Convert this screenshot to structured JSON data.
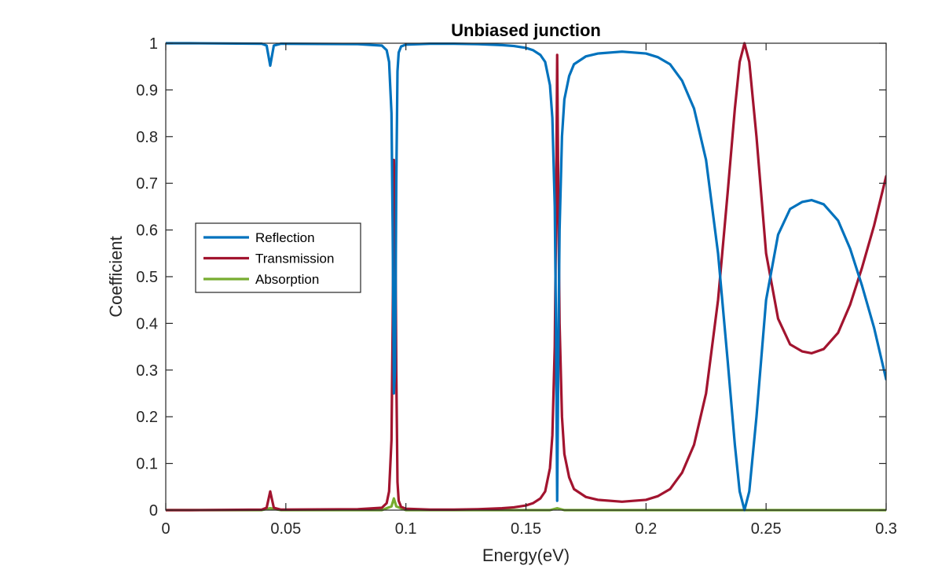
{
  "chart_data": {
    "type": "line",
    "title": "Unbiased junction",
    "xlabel": "Energy(eV)",
    "ylabel": "Coefficient",
    "xlim": [
      0,
      0.3
    ],
    "ylim": [
      0,
      1
    ],
    "xticks": [
      "0",
      "0.05",
      "0.1",
      "0.15",
      "0.2",
      "0.25",
      "0.3"
    ],
    "yticks": [
      "0",
      "0.1",
      "0.2",
      "0.3",
      "0.4",
      "0.5",
      "0.6",
      "0.7",
      "0.8",
      "0.9",
      "1"
    ],
    "grid": false,
    "legend": "center-left",
    "series": [
      {
        "name": "Reflection",
        "color": "#0072BD",
        "x": [
          0,
          0.01,
          0.04,
          0.042,
          0.0435,
          0.045,
          0.048,
          0.08,
          0.09,
          0.092,
          0.093,
          0.094,
          0.0945,
          0.095,
          0.0955,
          0.096,
          0.0965,
          0.097,
          0.098,
          0.1,
          0.11,
          0.12,
          0.13,
          0.14,
          0.145,
          0.15,
          0.153,
          0.156,
          0.158,
          0.16,
          0.161,
          0.162,
          0.1625,
          0.163,
          0.1635,
          0.164,
          0.165,
          0.166,
          0.168,
          0.17,
          0.175,
          0.18,
          0.19,
          0.2,
          0.205,
          0.21,
          0.215,
          0.22,
          0.225,
          0.23,
          0.234,
          0.237,
          0.239,
          0.241,
          0.243,
          0.246,
          0.25,
          0.255,
          0.26,
          0.265,
          0.269,
          0.274,
          0.28,
          0.285,
          0.29,
          0.295,
          0.3
        ],
        "y": [
          1,
          1,
          0.999,
          0.995,
          0.952,
          0.995,
          0.999,
          0.998,
          0.995,
          0.985,
          0.96,
          0.85,
          0.6,
          0.25,
          0.3,
          0.7,
          0.94,
          0.98,
          0.993,
          0.997,
          0.999,
          0.999,
          0.998,
          0.996,
          0.994,
          0.99,
          0.985,
          0.975,
          0.96,
          0.91,
          0.84,
          0.65,
          0.4,
          0.02,
          0.35,
          0.6,
          0.8,
          0.88,
          0.93,
          0.955,
          0.972,
          0.978,
          0.982,
          0.978,
          0.97,
          0.955,
          0.92,
          0.86,
          0.75,
          0.55,
          0.32,
          0.14,
          0.04,
          0.0,
          0.04,
          0.2,
          0.45,
          0.59,
          0.645,
          0.66,
          0.664,
          0.655,
          0.62,
          0.56,
          0.48,
          0.39,
          0.28
        ]
      },
      {
        "name": "Transmission",
        "color": "#A2142F",
        "x": [
          0,
          0.01,
          0.04,
          0.042,
          0.0435,
          0.045,
          0.048,
          0.08,
          0.09,
          0.092,
          0.093,
          0.094,
          0.0945,
          0.095,
          0.0955,
          0.096,
          0.0965,
          0.097,
          0.098,
          0.1,
          0.11,
          0.12,
          0.13,
          0.14,
          0.145,
          0.15,
          0.153,
          0.156,
          0.158,
          0.16,
          0.161,
          0.162,
          0.1625,
          0.163,
          0.1635,
          0.164,
          0.165,
          0.166,
          0.168,
          0.17,
          0.175,
          0.18,
          0.19,
          0.2,
          0.205,
          0.21,
          0.215,
          0.22,
          0.225,
          0.23,
          0.234,
          0.237,
          0.239,
          0.241,
          0.243,
          0.246,
          0.25,
          0.255,
          0.26,
          0.265,
          0.269,
          0.274,
          0.28,
          0.285,
          0.29,
          0.295,
          0.3
        ],
        "y": [
          0,
          0,
          0.001,
          0.005,
          0.04,
          0.005,
          0.001,
          0.002,
          0.005,
          0.015,
          0.04,
          0.15,
          0.4,
          0.75,
          0.7,
          0.3,
          0.06,
          0.02,
          0.007,
          0.003,
          0.001,
          0.001,
          0.002,
          0.004,
          0.006,
          0.01,
          0.015,
          0.025,
          0.04,
          0.09,
          0.16,
          0.35,
          0.6,
          0.975,
          0.65,
          0.4,
          0.2,
          0.12,
          0.07,
          0.045,
          0.028,
          0.022,
          0.018,
          0.022,
          0.03,
          0.045,
          0.08,
          0.14,
          0.25,
          0.45,
          0.68,
          0.86,
          0.96,
          1.0,
          0.96,
          0.8,
          0.55,
          0.41,
          0.355,
          0.34,
          0.336,
          0.345,
          0.38,
          0.44,
          0.52,
          0.61,
          0.715
        ]
      },
      {
        "name": "Absorption",
        "color": "#77AC30",
        "x": [
          0,
          0.04,
          0.0435,
          0.048,
          0.09,
          0.094,
          0.095,
          0.096,
          0.1,
          0.16,
          0.163,
          0.166,
          0.3
        ],
        "y": [
          0,
          0,
          0.004,
          0,
          0,
          0.008,
          0.025,
          0.008,
          0,
          0,
          0.004,
          0,
          0
        ]
      }
    ]
  }
}
